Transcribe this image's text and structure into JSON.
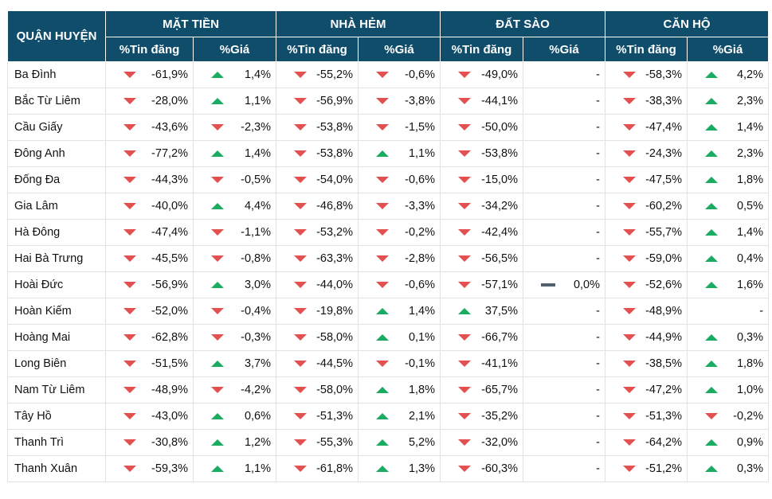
{
  "colors": {
    "header_bg": "#0f4d6b",
    "down": "#e25050",
    "up": "#1bab63",
    "flat": "#52606d"
  },
  "header": {
    "district": "QUẬN HUYỆN",
    "groups": [
      "MẶT TIỀN",
      "NHÀ HẺM",
      "ĐẤT SÀO",
      "CĂN HỘ"
    ],
    "sub": [
      "%Tin đăng",
      "%Giá"
    ]
  },
  "rows": [
    {
      "name": "Ba Đình",
      "cells": [
        {
          "t": "down",
          "v": "-61,9%"
        },
        {
          "t": "up",
          "v": "1,4%"
        },
        {
          "t": "down",
          "v": "-55,2%"
        },
        {
          "t": "down",
          "v": "-0,6%"
        },
        {
          "t": "down",
          "v": "-49,0%"
        },
        {
          "t": "",
          "v": "-"
        },
        {
          "t": "down",
          "v": "-58,3%"
        },
        {
          "t": "up",
          "v": "4,2%"
        }
      ]
    },
    {
      "name": "Bắc Từ Liêm",
      "cells": [
        {
          "t": "down",
          "v": "-28,0%"
        },
        {
          "t": "up",
          "v": "1,1%"
        },
        {
          "t": "down",
          "v": "-56,9%"
        },
        {
          "t": "down",
          "v": "-3,8%"
        },
        {
          "t": "down",
          "v": "-44,1%"
        },
        {
          "t": "",
          "v": "-"
        },
        {
          "t": "down",
          "v": "-38,3%"
        },
        {
          "t": "up",
          "v": "2,3%"
        }
      ]
    },
    {
      "name": "Cầu Giấy",
      "cells": [
        {
          "t": "down",
          "v": "-43,6%"
        },
        {
          "t": "down",
          "v": "-2,3%"
        },
        {
          "t": "down",
          "v": "-53,8%"
        },
        {
          "t": "down",
          "v": "-1,5%"
        },
        {
          "t": "down",
          "v": "-50,0%"
        },
        {
          "t": "",
          "v": "-"
        },
        {
          "t": "down",
          "v": "-47,4%"
        },
        {
          "t": "up",
          "v": "1,4%"
        }
      ]
    },
    {
      "name": "Đông Anh",
      "cells": [
        {
          "t": "down",
          "v": "-77,2%"
        },
        {
          "t": "up",
          "v": "1,4%"
        },
        {
          "t": "down",
          "v": "-53,8%"
        },
        {
          "t": "up",
          "v": "1,1%"
        },
        {
          "t": "down",
          "v": "-53,8%"
        },
        {
          "t": "",
          "v": "-"
        },
        {
          "t": "down",
          "v": "-24,3%"
        },
        {
          "t": "up",
          "v": "2,3%"
        }
      ]
    },
    {
      "name": "Đống Đa",
      "cells": [
        {
          "t": "down",
          "v": "-44,3%"
        },
        {
          "t": "down",
          "v": "-0,5%"
        },
        {
          "t": "down",
          "v": "-54,0%"
        },
        {
          "t": "down",
          "v": "-0,6%"
        },
        {
          "t": "down",
          "v": "-15,0%"
        },
        {
          "t": "",
          "v": "-"
        },
        {
          "t": "down",
          "v": "-47,5%"
        },
        {
          "t": "up",
          "v": "1,8%"
        }
      ]
    },
    {
      "name": "Gia Lâm",
      "cells": [
        {
          "t": "down",
          "v": "-40,0%"
        },
        {
          "t": "up",
          "v": "4,4%"
        },
        {
          "t": "down",
          "v": "-46,8%"
        },
        {
          "t": "down",
          "v": "-3,3%"
        },
        {
          "t": "down",
          "v": "-34,2%"
        },
        {
          "t": "",
          "v": "-"
        },
        {
          "t": "down",
          "v": "-60,2%"
        },
        {
          "t": "up",
          "v": "0,5%"
        }
      ]
    },
    {
      "name": "Hà Đông",
      "cells": [
        {
          "t": "down",
          "v": "-47,4%"
        },
        {
          "t": "down",
          "v": "-1,1%"
        },
        {
          "t": "down",
          "v": "-53,2%"
        },
        {
          "t": "down",
          "v": "-0,2%"
        },
        {
          "t": "down",
          "v": "-42,4%"
        },
        {
          "t": "",
          "v": "-"
        },
        {
          "t": "down",
          "v": "-55,7%"
        },
        {
          "t": "up",
          "v": "1,4%"
        }
      ]
    },
    {
      "name": "Hai Bà Trưng",
      "cells": [
        {
          "t": "down",
          "v": "-45,5%"
        },
        {
          "t": "down",
          "v": "-0,8%"
        },
        {
          "t": "down",
          "v": "-63,3%"
        },
        {
          "t": "down",
          "v": "-2,8%"
        },
        {
          "t": "down",
          "v": "-56,5%"
        },
        {
          "t": "",
          "v": "-"
        },
        {
          "t": "down",
          "v": "-59,0%"
        },
        {
          "t": "up",
          "v": "0,4%"
        }
      ]
    },
    {
      "name": "Hoài Đức",
      "cells": [
        {
          "t": "down",
          "v": "-56,9%"
        },
        {
          "t": "up",
          "v": "3,0%"
        },
        {
          "t": "down",
          "v": "-44,0%"
        },
        {
          "t": "down",
          "v": "-0,6%"
        },
        {
          "t": "down",
          "v": "-57,1%"
        },
        {
          "t": "flat",
          "v": "0,0%"
        },
        {
          "t": "down",
          "v": "-52,6%"
        },
        {
          "t": "up",
          "v": "1,6%"
        }
      ]
    },
    {
      "name": "Hoàn Kiếm",
      "cells": [
        {
          "t": "down",
          "v": "-52,0%"
        },
        {
          "t": "down",
          "v": "-0,4%"
        },
        {
          "t": "down",
          "v": "-19,8%"
        },
        {
          "t": "up",
          "v": "1,4%"
        },
        {
          "t": "up",
          "v": "37,5%"
        },
        {
          "t": "",
          "v": "-"
        },
        {
          "t": "down",
          "v": "-48,9%"
        },
        {
          "t": "",
          "v": "-"
        }
      ]
    },
    {
      "name": "Hoàng Mai",
      "cells": [
        {
          "t": "down",
          "v": "-62,8%"
        },
        {
          "t": "down",
          "v": "-0,3%"
        },
        {
          "t": "down",
          "v": "-58,0%"
        },
        {
          "t": "up",
          "v": "0,1%"
        },
        {
          "t": "down",
          "v": "-66,7%"
        },
        {
          "t": "",
          "v": "-"
        },
        {
          "t": "down",
          "v": "-44,9%"
        },
        {
          "t": "up",
          "v": "0,3%"
        }
      ]
    },
    {
      "name": "Long Biên",
      "cells": [
        {
          "t": "down",
          "v": "-51,5%"
        },
        {
          "t": "up",
          "v": "3,7%"
        },
        {
          "t": "down",
          "v": "-44,5%"
        },
        {
          "t": "down",
          "v": "-0,1%"
        },
        {
          "t": "down",
          "v": "-41,1%"
        },
        {
          "t": "",
          "v": "-"
        },
        {
          "t": "down",
          "v": "-38,5%"
        },
        {
          "t": "up",
          "v": "1,8%"
        }
      ]
    },
    {
      "name": "Nam Từ Liêm",
      "cells": [
        {
          "t": "down",
          "v": "-48,9%"
        },
        {
          "t": "down",
          "v": "-4,2%"
        },
        {
          "t": "down",
          "v": "-58,0%"
        },
        {
          "t": "up",
          "v": "1,8%"
        },
        {
          "t": "down",
          "v": "-65,7%"
        },
        {
          "t": "",
          "v": "-"
        },
        {
          "t": "down",
          "v": "-47,2%"
        },
        {
          "t": "up",
          "v": "1,0%"
        }
      ]
    },
    {
      "name": "Tây Hồ",
      "cells": [
        {
          "t": "down",
          "v": "-43,0%"
        },
        {
          "t": "up",
          "v": "0,6%"
        },
        {
          "t": "down",
          "v": "-51,3%"
        },
        {
          "t": "up",
          "v": "2,1%"
        },
        {
          "t": "down",
          "v": "-35,2%"
        },
        {
          "t": "",
          "v": "-"
        },
        {
          "t": "down",
          "v": "-51,3%"
        },
        {
          "t": "down",
          "v": "-0,2%"
        }
      ]
    },
    {
      "name": "Thanh Trì",
      "cells": [
        {
          "t": "down",
          "v": "-30,8%"
        },
        {
          "t": "up",
          "v": "1,2%"
        },
        {
          "t": "down",
          "v": "-55,3%"
        },
        {
          "t": "up",
          "v": "5,2%"
        },
        {
          "t": "down",
          "v": "-32,0%"
        },
        {
          "t": "",
          "v": "-"
        },
        {
          "t": "down",
          "v": "-64,2%"
        },
        {
          "t": "up",
          "v": "0,9%"
        }
      ]
    },
    {
      "name": "Thanh Xuân",
      "cells": [
        {
          "t": "down",
          "v": "-59,3%"
        },
        {
          "t": "up",
          "v": "1,1%"
        },
        {
          "t": "down",
          "v": "-61,8%"
        },
        {
          "t": "up",
          "v": "1,3%"
        },
        {
          "t": "down",
          "v": "-60,3%"
        },
        {
          "t": "",
          "v": "-"
        },
        {
          "t": "down",
          "v": "-51,2%"
        },
        {
          "t": "up",
          "v": "0,3%"
        }
      ]
    }
  ]
}
